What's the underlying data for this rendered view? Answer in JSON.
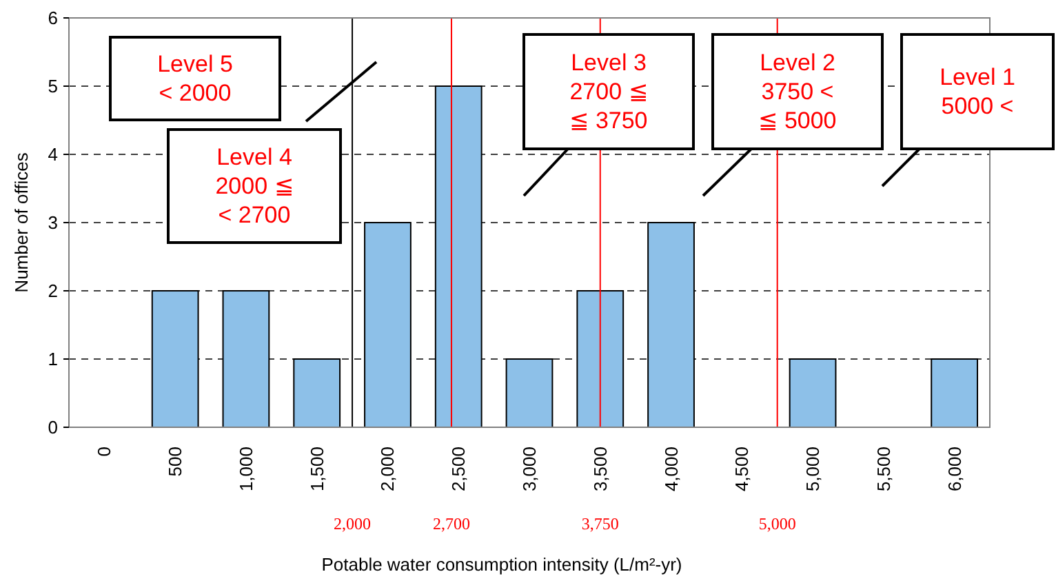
{
  "chart_data": {
    "type": "bar",
    "xlabel": "Potable water consumption intensity (L/m²-yr)",
    "ylabel": "Number of offices",
    "categories": [
      "0",
      "500",
      "1,000",
      "1,500",
      "2,000",
      "2,500",
      "3,000",
      "3,500",
      "4,000",
      "4,500",
      "5,000",
      "5,500",
      "6,000"
    ],
    "values": [
      0,
      2,
      2,
      1,
      3,
      5,
      1,
      2,
      3,
      0,
      1,
      0,
      1
    ],
    "color": "#8dc0e8",
    "ylim": [
      0,
      6
    ],
    "yticks": [
      0,
      1,
      2,
      3,
      4,
      5,
      6
    ],
    "x2lim": [
      0,
      6500
    ],
    "x2ticks": [
      {
        "value": 2000,
        "label": "2,000"
      },
      {
        "value": 2700,
        "label": "2,700"
      },
      {
        "value": 3750,
        "label": "3,750"
      },
      {
        "value": 5000,
        "label": "5,000"
      }
    ],
    "grid": "y",
    "ref_lines": [
      {
        "axis": "x2",
        "value": 2000,
        "color": "#000000"
      },
      {
        "axis": "x2",
        "value": 2700,
        "color": "#ff0000"
      },
      {
        "axis": "x2",
        "value": 3750,
        "color": "#ff0000"
      },
      {
        "axis": "x2",
        "value": 5000,
        "color": "#ff0000"
      }
    ],
    "annotations": [
      "Level 5\n< 2000",
      "Level 4\n2000 ≦\n< 2700",
      "Level 3\n2700 ≦\n≦ 3750",
      "Level 2\n3750 <\n≦ 5000",
      "Level 1\n5000 <"
    ]
  }
}
